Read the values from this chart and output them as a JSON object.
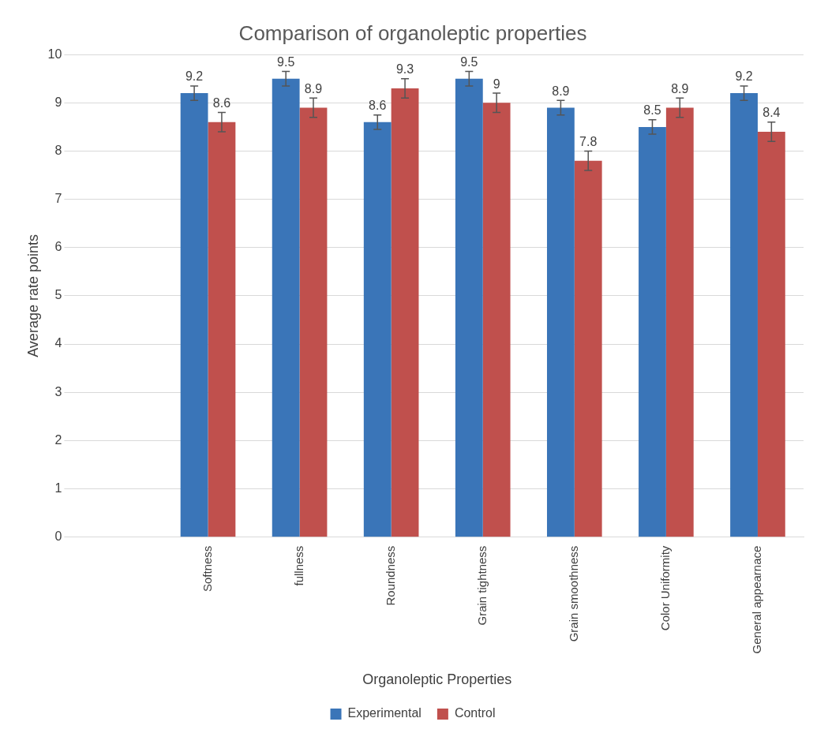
{
  "chart_data": {
    "type": "bar",
    "title": "Comparison of organoleptic properties",
    "xlabel": "Organoleptic Properties",
    "ylabel": "Average rate points",
    "categories": [
      null,
      "Softness",
      "fullness",
      "Roundness",
      "Grain tightness",
      "Grain smoothness",
      "Color Uniformity",
      "General appearnace"
    ],
    "series": [
      {
        "name": "Experimental",
        "color": "#3a75b8",
        "values": [
          null,
          9.2,
          9.5,
          8.6,
          9.5,
          8.9,
          8.5,
          9.2
        ],
        "errors": [
          null,
          0.15,
          0.15,
          0.15,
          0.15,
          0.15,
          0.15,
          0.15
        ]
      },
      {
        "name": "Control",
        "color": "#c0504d",
        "values": [
          null,
          8.6,
          8.9,
          9.3,
          9,
          7.8,
          8.9,
          8.4
        ],
        "errors": [
          null,
          0.2,
          0.2,
          0.2,
          0.2,
          0.2,
          0.2,
          0.2
        ]
      }
    ],
    "ylim": [
      0,
      10
    ],
    "yticks": [
      0,
      1,
      2,
      3,
      4,
      5,
      6,
      7,
      8,
      9,
      10
    ],
    "grid": "y",
    "legend": "bottom",
    "data_labels": true
  }
}
